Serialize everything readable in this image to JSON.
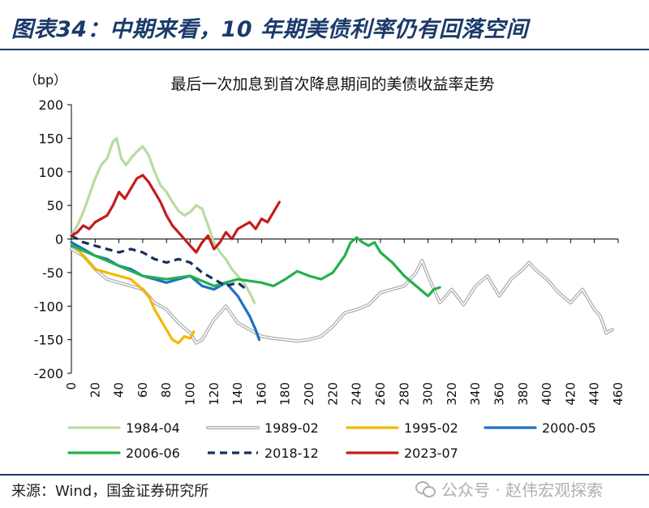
{
  "header": {
    "title": "图表34：中期来看，10 年期美债利率仍有回落空间"
  },
  "source": "来源：Wind，国金证券研究所",
  "watermark": "公众号 · 赵伟宏观探索",
  "chart_data": {
    "type": "line",
    "title": "最后一次加息到首次降息期间的美债收益率走势",
    "ylabel": "（bp）",
    "xlabel": "",
    "xlim": [
      0,
      460
    ],
    "ylim": [
      -200,
      200
    ],
    "xticks": [
      0,
      20,
      40,
      60,
      80,
      100,
      120,
      140,
      160,
      180,
      200,
      220,
      240,
      260,
      280,
      300,
      320,
      340,
      360,
      380,
      400,
      420,
      440,
      460
    ],
    "yticks": [
      -200,
      -150,
      -100,
      -50,
      0,
      50,
      100,
      150,
      200
    ],
    "grid": false,
    "legend": "bottom",
    "series": [
      {
        "name": "1984-04",
        "color": "#b9dba0",
        "style": "solid",
        "x": [
          0,
          5,
          10,
          15,
          20,
          25,
          30,
          35,
          38,
          42,
          46,
          50,
          55,
          60,
          65,
          70,
          75,
          80,
          85,
          90,
          95,
          100,
          105,
          110,
          115,
          120,
          125,
          130,
          135,
          140,
          145,
          150,
          154
        ],
        "y": [
          5,
          20,
          40,
          65,
          90,
          110,
          120,
          145,
          150,
          120,
          110,
          120,
          130,
          138,
          125,
          100,
          80,
          70,
          55,
          42,
          35,
          40,
          50,
          45,
          20,
          -5,
          -20,
          -30,
          -45,
          -55,
          -65,
          -80,
          -95
        ]
      },
      {
        "name": "1989-02",
        "color": "#aaaaaa",
        "style": "double",
        "x": [
          0,
          10,
          20,
          30,
          40,
          50,
          60,
          70,
          80,
          90,
          100,
          105,
          110,
          120,
          130,
          140,
          150,
          160,
          170,
          180,
          190,
          200,
          210,
          220,
          230,
          240,
          250,
          260,
          270,
          280,
          290,
          295,
          300,
          310,
          320,
          330,
          340,
          350,
          360,
          370,
          380,
          385,
          390,
          400,
          410,
          420,
          430,
          440,
          445,
          450,
          455
        ],
        "y": [
          -15,
          -25,
          -45,
          -60,
          -65,
          -70,
          -75,
          -95,
          -105,
          -125,
          -140,
          -155,
          -150,
          -120,
          -100,
          -125,
          -135,
          -145,
          -148,
          -150,
          -152,
          -150,
          -145,
          -130,
          -110,
          -105,
          -98,
          -80,
          -75,
          -70,
          -50,
          -32,
          -55,
          -95,
          -75,
          -98,
          -70,
          -55,
          -85,
          -60,
          -45,
          -35,
          -45,
          -60,
          -80,
          -95,
          -75,
          -105,
          -115,
          -140,
          -135
        ]
      },
      {
        "name": "1995-02",
        "color": "#f3b800",
        "style": "solid",
        "x": [
          0,
          10,
          20,
          30,
          40,
          50,
          60,
          65,
          70,
          75,
          80,
          85,
          90,
          95,
          100,
          103
        ],
        "y": [
          -5,
          -25,
          -45,
          -50,
          -55,
          -60,
          -75,
          -85,
          -105,
          -120,
          -135,
          -150,
          -155,
          -145,
          -148,
          -138
        ]
      },
      {
        "name": "2000-05",
        "color": "#1f6fc5",
        "style": "solid",
        "x": [
          0,
          10,
          20,
          30,
          40,
          50,
          60,
          70,
          80,
          90,
          100,
          110,
          120,
          130,
          140,
          145,
          150,
          155,
          158
        ],
        "y": [
          -5,
          -15,
          -25,
          -30,
          -40,
          -45,
          -55,
          -60,
          -65,
          -60,
          -55,
          -70,
          -75,
          -65,
          -85,
          -100,
          -115,
          -135,
          -150
        ]
      },
      {
        "name": "2006-06",
        "color": "#22b14c",
        "style": "solid",
        "x": [
          0,
          20,
          40,
          60,
          80,
          100,
          120,
          140,
          160,
          170,
          180,
          190,
          200,
          210,
          220,
          230,
          235,
          240,
          245,
          250,
          255,
          260,
          270,
          280,
          290,
          300,
          305,
          310
        ],
        "y": [
          -10,
          -25,
          -40,
          -55,
          -60,
          -55,
          -70,
          -60,
          -65,
          -70,
          -60,
          -48,
          -55,
          -60,
          -50,
          -25,
          -5,
          2,
          -5,
          -10,
          -5,
          -20,
          -35,
          -55,
          -70,
          -85,
          -75,
          -72
        ]
      },
      {
        "name": "2018-12",
        "color": "#17305c",
        "style": "dashed",
        "x": [
          0,
          10,
          20,
          30,
          40,
          50,
          60,
          70,
          80,
          90,
          100,
          110,
          120,
          130,
          140,
          145,
          148
        ],
        "y": [
          5,
          -5,
          -10,
          -15,
          -20,
          -15,
          -20,
          -30,
          -35,
          -30,
          -35,
          -50,
          -60,
          -70,
          -65,
          -72,
          -75
        ]
      },
      {
        "name": "2023-07",
        "color": "#c41c1c",
        "style": "solid",
        "x": [
          0,
          5,
          10,
          15,
          20,
          25,
          30,
          35,
          40,
          45,
          50,
          55,
          60,
          65,
          70,
          75,
          80,
          85,
          90,
          95,
          100,
          105,
          110,
          115,
          120,
          125,
          130,
          135,
          140,
          145,
          150,
          155,
          160,
          165,
          170,
          175
        ],
        "y": [
          5,
          10,
          20,
          15,
          25,
          30,
          35,
          50,
          70,
          60,
          75,
          90,
          95,
          85,
          70,
          55,
          35,
          20,
          10,
          0,
          -10,
          -20,
          -5,
          5,
          -15,
          -5,
          10,
          0,
          15,
          20,
          25,
          15,
          30,
          25,
          40,
          55
        ]
      }
    ]
  }
}
